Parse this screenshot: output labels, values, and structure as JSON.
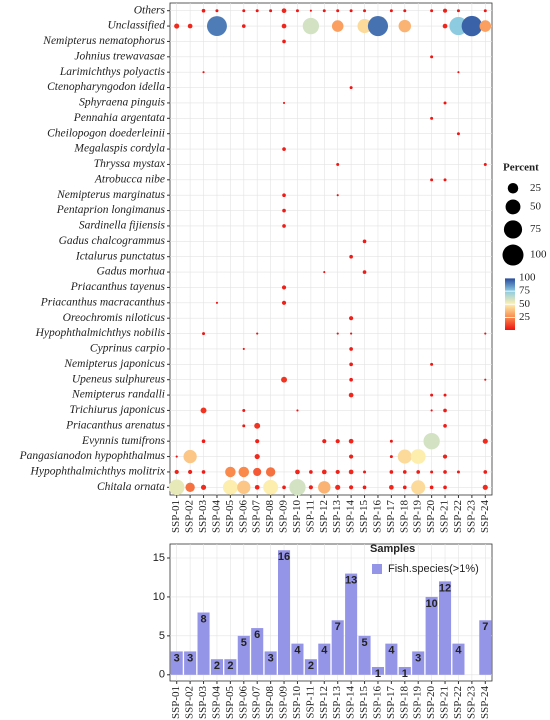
{
  "chart_data": [
    {
      "type": "bubble",
      "categories": [
        "SSP-01",
        "SSP-02",
        "SSP-03",
        "SSP-04",
        "SSP-05",
        "SSP-06",
        "SSP-07",
        "SSP-08",
        "SSP-09",
        "SSP-10",
        "SSP-11",
        "SSP-12",
        "SSP-13",
        "SSP-14",
        "SSP-15",
        "SSP-16",
        "SSP-17",
        "SSP-18",
        "SSP-19",
        "SSP-20",
        "SSP-21",
        "SSP-22",
        "SSP-23",
        "SSP-24"
      ],
      "series": [
        {
          "name": "Others",
          "values": [
            null,
            null,
            3,
            2,
            null,
            2,
            2,
            2,
            5,
            2,
            1,
            2,
            2,
            2,
            2,
            null,
            2,
            2,
            null,
            2,
            4,
            2,
            null,
            2
          ]
        },
        {
          "name": "Unclassified",
          "values": [
            6,
            5,
            null,
            90,
            null,
            3,
            null,
            null,
            5,
            null,
            60,
            null,
            30,
            null,
            45,
            92,
            null,
            35,
            null,
            null,
            5,
            75,
            95,
            30
          ]
        },
        {
          "name": "Nemipterus nematophorus",
          "values": [
            null,
            null,
            null,
            null,
            null,
            null,
            null,
            null,
            3,
            null,
            null,
            null,
            null,
            null,
            null,
            null,
            null,
            null,
            null,
            null,
            null,
            null,
            null,
            null
          ]
        },
        {
          "name": "Johnius trewavasae",
          "values": [
            null,
            null,
            null,
            null,
            null,
            null,
            null,
            null,
            null,
            null,
            null,
            null,
            null,
            null,
            null,
            null,
            null,
            null,
            null,
            2,
            null,
            null,
            null,
            null
          ]
        },
        {
          "name": "Larimichthys polyactis",
          "values": [
            null,
            null,
            1,
            null,
            null,
            null,
            null,
            null,
            null,
            null,
            null,
            null,
            null,
            null,
            null,
            null,
            null,
            null,
            null,
            null,
            null,
            1,
            null,
            null
          ]
        },
        {
          "name": "Ctenopharyngodon idella",
          "values": [
            null,
            null,
            null,
            null,
            null,
            null,
            null,
            null,
            null,
            null,
            null,
            null,
            null,
            2,
            null,
            null,
            null,
            null,
            null,
            null,
            null,
            null,
            null,
            null
          ]
        },
        {
          "name": "Sphyraena pinguis",
          "values": [
            null,
            null,
            null,
            null,
            null,
            null,
            null,
            null,
            1,
            null,
            null,
            null,
            null,
            null,
            null,
            null,
            null,
            null,
            null,
            null,
            2,
            null,
            null,
            null
          ]
        },
        {
          "name": "Pennahia argentata",
          "values": [
            null,
            null,
            null,
            null,
            null,
            null,
            null,
            null,
            null,
            null,
            null,
            null,
            null,
            null,
            null,
            null,
            null,
            null,
            null,
            2,
            null,
            null,
            null,
            null
          ]
        },
        {
          "name": "Cheilopogon doederleinii",
          "values": [
            null,
            null,
            null,
            null,
            null,
            null,
            null,
            null,
            null,
            null,
            null,
            null,
            null,
            null,
            null,
            null,
            null,
            null,
            null,
            null,
            null,
            2,
            null,
            null
          ]
        },
        {
          "name": "Megalaspis cordyla",
          "values": [
            null,
            null,
            null,
            null,
            null,
            null,
            null,
            null,
            3,
            null,
            null,
            null,
            null,
            null,
            null,
            null,
            null,
            null,
            null,
            null,
            null,
            null,
            null,
            null
          ]
        },
        {
          "name": "Thryssa mystax",
          "values": [
            null,
            null,
            null,
            null,
            null,
            null,
            null,
            null,
            null,
            null,
            null,
            null,
            2,
            null,
            null,
            null,
            null,
            null,
            null,
            null,
            null,
            null,
            null,
            2
          ]
        },
        {
          "name": "Atrobucca nibe",
          "values": [
            null,
            null,
            null,
            null,
            null,
            null,
            null,
            null,
            null,
            null,
            null,
            null,
            null,
            null,
            null,
            null,
            null,
            null,
            null,
            2,
            2,
            null,
            null,
            null
          ]
        },
        {
          "name": "Nemipterus marginatus",
          "values": [
            null,
            null,
            null,
            null,
            null,
            null,
            null,
            null,
            3,
            null,
            null,
            null,
            1,
            null,
            null,
            null,
            null,
            null,
            null,
            null,
            null,
            null,
            null,
            null
          ]
        },
        {
          "name": "Pentaprion longimanus",
          "values": [
            null,
            null,
            null,
            null,
            null,
            null,
            null,
            null,
            3,
            null,
            null,
            null,
            null,
            null,
            null,
            null,
            null,
            null,
            null,
            null,
            null,
            null,
            null,
            null
          ]
        },
        {
          "name": "Sardinella fijiensis",
          "values": [
            null,
            null,
            null,
            null,
            null,
            null,
            null,
            null,
            3,
            null,
            null,
            null,
            null,
            null,
            null,
            null,
            null,
            null,
            null,
            null,
            null,
            null,
            null,
            null
          ]
        },
        {
          "name": "Gadus chalcogrammus",
          "values": [
            null,
            null,
            null,
            null,
            null,
            null,
            null,
            null,
            null,
            null,
            null,
            null,
            null,
            null,
            3,
            null,
            null,
            null,
            null,
            null,
            null,
            null,
            null,
            null
          ]
        },
        {
          "name": "Ictalurus punctatus",
          "values": [
            null,
            null,
            null,
            null,
            null,
            null,
            null,
            null,
            null,
            null,
            null,
            null,
            null,
            3,
            null,
            null,
            null,
            null,
            null,
            null,
            null,
            null,
            null,
            null
          ]
        },
        {
          "name": "Gadus morhua",
          "values": [
            null,
            null,
            null,
            null,
            null,
            null,
            null,
            null,
            null,
            null,
            null,
            1,
            null,
            null,
            3,
            null,
            null,
            null,
            null,
            null,
            null,
            null,
            null,
            null
          ]
        },
        {
          "name": "Priacanthus tayenus",
          "values": [
            null,
            null,
            null,
            null,
            null,
            null,
            null,
            null,
            4,
            null,
            null,
            null,
            null,
            null,
            null,
            null,
            null,
            null,
            null,
            null,
            null,
            null,
            null,
            null
          ]
        },
        {
          "name": "Priacanthus macracanthus",
          "values": [
            null,
            null,
            null,
            1,
            null,
            null,
            null,
            null,
            4,
            null,
            null,
            null,
            null,
            null,
            null,
            null,
            null,
            null,
            null,
            null,
            null,
            null,
            null,
            null
          ]
        },
        {
          "name": "Oreochromis niloticus",
          "values": [
            null,
            null,
            null,
            null,
            null,
            null,
            null,
            null,
            null,
            null,
            null,
            null,
            null,
            4,
            null,
            null,
            null,
            null,
            null,
            null,
            null,
            null,
            null,
            null
          ]
        },
        {
          "name": "Hypophthalmichthys nobilis",
          "values": [
            null,
            null,
            2,
            null,
            null,
            null,
            1,
            null,
            null,
            null,
            null,
            null,
            1,
            1,
            null,
            null,
            null,
            null,
            null,
            null,
            null,
            null,
            null,
            1
          ]
        },
        {
          "name": "Cyprinus carpio",
          "values": [
            null,
            null,
            null,
            null,
            null,
            1,
            null,
            null,
            null,
            null,
            null,
            null,
            null,
            3,
            null,
            null,
            null,
            null,
            null,
            null,
            null,
            null,
            null,
            null
          ]
        },
        {
          "name": "Nemipterus japonicus",
          "values": [
            null,
            null,
            null,
            null,
            null,
            null,
            null,
            null,
            null,
            null,
            null,
            null,
            null,
            3,
            null,
            null,
            null,
            null,
            null,
            2,
            null,
            null,
            null,
            null
          ]
        },
        {
          "name": "Upeneus sulphureus",
          "values": [
            null,
            null,
            null,
            null,
            null,
            null,
            null,
            null,
            8,
            null,
            null,
            null,
            null,
            3,
            null,
            null,
            null,
            null,
            null,
            null,
            null,
            null,
            null,
            1
          ]
        },
        {
          "name": "Nemipterus randalli",
          "values": [
            null,
            null,
            null,
            null,
            null,
            null,
            null,
            null,
            null,
            null,
            null,
            null,
            null,
            5,
            null,
            null,
            null,
            null,
            null,
            2,
            2,
            null,
            null,
            null
          ]
        },
        {
          "name": "Trichiurus japonicus",
          "values": [
            null,
            null,
            8,
            null,
            null,
            2,
            null,
            null,
            null,
            1,
            null,
            null,
            null,
            null,
            null,
            null,
            null,
            null,
            null,
            1,
            3,
            null,
            null,
            null
          ]
        },
        {
          "name": "Priacanthus arenatus",
          "values": [
            null,
            null,
            null,
            null,
            null,
            2,
            8,
            null,
            null,
            null,
            null,
            null,
            null,
            null,
            null,
            null,
            null,
            null,
            null,
            null,
            3,
            null,
            null,
            null
          ]
        },
        {
          "name": "Evynnis tumifrons",
          "values": [
            null,
            null,
            3,
            null,
            null,
            null,
            4,
            null,
            null,
            null,
            null,
            4,
            4,
            5,
            null,
            null,
            2,
            null,
            null,
            60,
            null,
            null,
            null,
            6
          ]
        },
        {
          "name": "Pangasianodon hypophthalmus",
          "values": [
            1,
            40,
            null,
            null,
            null,
            null,
            6,
            null,
            null,
            null,
            null,
            null,
            null,
            4,
            null,
            null,
            2,
            45,
            50,
            null,
            4,
            null,
            null,
            null
          ]
        },
        {
          "name": "Hypophthalmichthys molitrix",
          "values": [
            4,
            4,
            3,
            null,
            25,
            25,
            15,
            20,
            null,
            5,
            3,
            5,
            4,
            5,
            2,
            null,
            3,
            3,
            3,
            2,
            3,
            2,
            null,
            3
          ]
        },
        {
          "name": "Chitala ornata",
          "values": [
            55,
            20,
            6,
            null,
            50,
            40,
            5,
            50,
            3,
            60,
            4,
            35,
            6,
            4,
            3,
            null,
            5,
            3,
            45,
            3,
            3,
            null,
            null,
            6
          ]
        }
      ],
      "legend_title": "Percent",
      "size_ticks": [
        25,
        50,
        75,
        100
      ],
      "color_ticks": [
        25,
        50,
        75,
        100
      ],
      "clim": [
        1,
        100
      ],
      "colorscale": [
        "#ee1111",
        "#f98e4e",
        "#fdf0b0",
        "#8ccbe2",
        "#24479a"
      ],
      "grid": true
    },
    {
      "type": "bar",
      "categories": [
        "SSP-01",
        "SSP-02",
        "SSP-03",
        "SSP-04",
        "SSP-05",
        "SSP-06",
        "SSP-07",
        "SSP-08",
        "SSP-09",
        "SSP-10",
        "SSP-11",
        "SSP-12",
        "SSP-13",
        "SSP-14",
        "SSP-15",
        "SSP-16",
        "SSP-17",
        "SSP-18",
        "SSP-19",
        "SSP-20",
        "SSP-21",
        "SSP-22",
        "SSP-23",
        "SSP-24"
      ],
      "series": [
        {
          "name": "Fish.species(>1%)",
          "color": "#9595e8",
          "values": [
            3,
            3,
            8,
            2,
            2,
            5,
            6,
            3,
            16,
            4,
            2,
            4,
            7,
            13,
            5,
            1,
            4,
            1,
            3,
            10,
            12,
            4,
            0,
            7
          ]
        }
      ],
      "legend_title": "Samples",
      "ylim": [
        -0.8,
        16.8
      ],
      "yticks": [
        0,
        5,
        10,
        15
      ],
      "grid": true
    }
  ]
}
